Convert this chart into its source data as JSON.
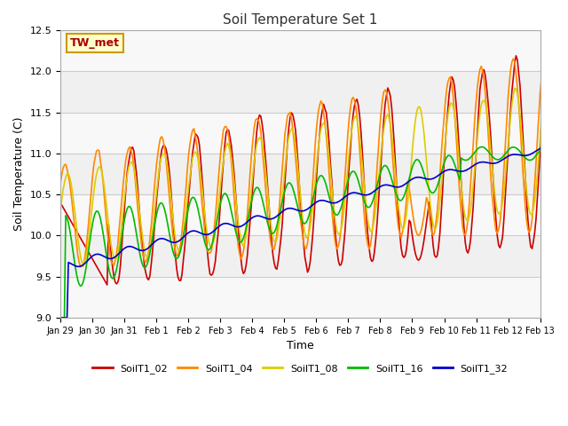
{
  "title": "Soil Temperature Set 1",
  "xlabel": "Time",
  "ylabel": "Soil Temperature (C)",
  "ylim": [
    9.0,
    12.5
  ],
  "annotation_text": "TW_met",
  "series": [
    {
      "label": "SoilT1_02",
      "color": "#cc0000"
    },
    {
      "label": "SoilT1_04",
      "color": "#ff8800"
    },
    {
      "label": "SoilT1_08",
      "color": "#ddcc00"
    },
    {
      "label": "SoilT1_16",
      "color": "#00bb00"
    },
    {
      "label": "SoilT1_32",
      "color": "#0000cc"
    }
  ],
  "xtick_labels": [
    "Jan 29",
    "Jan 30",
    "Jan 31",
    "Feb 1",
    "Feb 2",
    "Feb 3",
    "Feb 4",
    "Feb 5",
    "Feb 6",
    "Feb 7",
    "Feb 8",
    "Feb 9",
    "Feb 10",
    "Feb 11",
    "Feb 12",
    "Feb 13"
  ],
  "ytick_vals": [
    9.0,
    9.5,
    10.0,
    10.5,
    11.0,
    11.5,
    12.0,
    12.5
  ],
  "figsize": [
    6.4,
    4.8
  ],
  "dpi": 100
}
